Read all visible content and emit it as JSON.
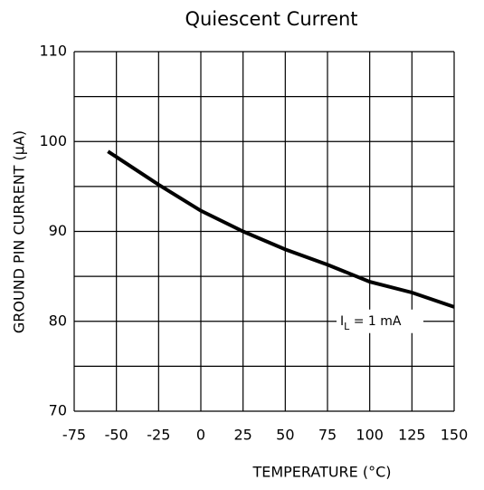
{
  "chart_data": {
    "type": "line",
    "title": "Quiescent Current",
    "x_label": "TEMPERATURE (°C)",
    "y_label": "GROUND PIN CURRENT (μA)",
    "x": [
      -55,
      -25,
      0,
      25,
      50,
      75,
      100,
      125,
      150
    ],
    "series": [
      {
        "name": "IL = 1 mA",
        "color": "#000000",
        "values": [
          98.9,
          95.2,
          92.3,
          90,
          88,
          86.3,
          84.4,
          83.2,
          81.6
        ]
      }
    ],
    "annotation": {
      "main": "I",
      "subscript": "L",
      "rest": " = 1 mA"
    },
    "xlim": [
      -75,
      150
    ],
    "xticks": [
      -75,
      -50,
      -25,
      0,
      25,
      50,
      75,
      100,
      125,
      150
    ],
    "ylim": [
      70,
      110
    ],
    "yticks": [
      70,
      80,
      90,
      100,
      110
    ],
    "y_minor_ticks": [
      75,
      85,
      95,
      105
    ],
    "grid": true
  }
}
